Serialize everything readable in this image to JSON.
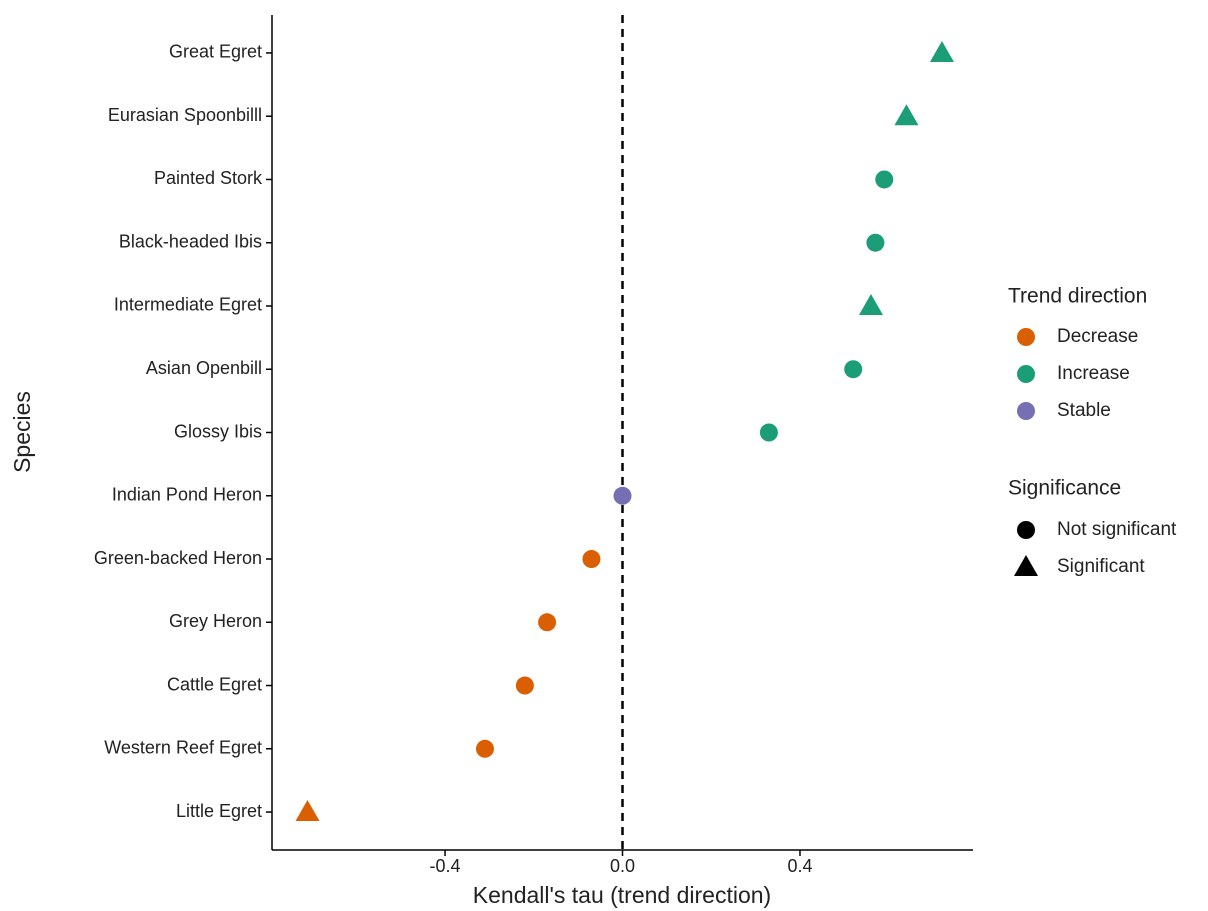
{
  "chart_data": {
    "type": "dot",
    "x_label": "Kendall's tau (trend direction)",
    "y_label": "Species",
    "categories": [
      "Great Egret",
      "Eurasian Spoonbilll",
      "Painted Stork",
      "Black-headed Ibis",
      "Intermediate Egret",
      "Asian Openbill",
      "Glossy Ibis",
      "Indian Pond Heron",
      "Green-backed Heron",
      "Grey Heron",
      "Cattle Egret",
      "Western Reef Egret",
      "Little Egret"
    ],
    "series": [
      {
        "name": "Decrease",
        "color": "#d95f02",
        "values": [
          null,
          null,
          null,
          null,
          null,
          null,
          null,
          null,
          -0.07,
          -0.17,
          -0.22,
          -0.31,
          -0.71
        ]
      },
      {
        "name": "Increase",
        "color": "#1b9e77",
        "values": [
          0.72,
          0.64,
          0.59,
          0.57,
          0.56,
          0.52,
          0.33,
          null,
          null,
          null,
          null,
          null,
          null
        ]
      },
      {
        "name": "Stable",
        "color": "#7570b3",
        "values": [
          null,
          null,
          null,
          null,
          null,
          null,
          null,
          0.0,
          null,
          null,
          null,
          null,
          null
        ]
      }
    ],
    "series_legend_title": "Trend direction",
    "shape_legend": {
      "title": "Significance",
      "items": [
        {
          "name": "Not significant",
          "marker": "circle"
        },
        {
          "name": "Significant",
          "marker": "triangle"
        }
      ]
    },
    "markers": [
      "triangle",
      "triangle",
      "circle",
      "circle",
      "triangle",
      "circle",
      "circle",
      "circle",
      "circle",
      "circle",
      "circle",
      "circle",
      "triangle"
    ],
    "xlim": [
      -0.79,
      0.79
    ],
    "xticks": [
      -0.4,
      {
        "value": 0,
        "label": "0.0"
      },
      0.4
    ],
    "vline": 0
  }
}
